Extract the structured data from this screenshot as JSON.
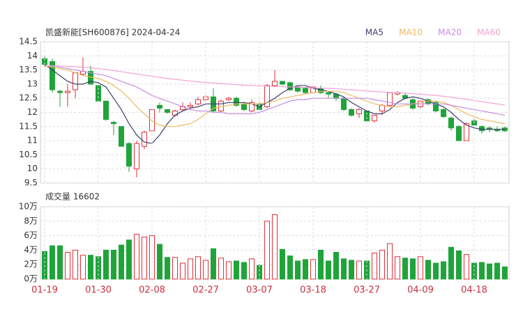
{
  "chart_data": [
    {
      "type": "candlestick",
      "title": "凯盛新能[SH600876] 2024-04-24",
      "open": [
        13.9,
        13.8,
        12.75,
        12.7,
        12.8,
        13.35,
        13.45,
        12.95,
        12.4,
        11.65,
        11.5,
        10.9,
        10.0,
        10.8,
        11.35,
        12.25,
        12.1,
        11.9,
        12.1,
        12.2,
        12.3,
        12.45,
        12.55,
        12.05,
        12.45,
        12.5,
        12.3,
        12.05,
        12.3,
        12.2,
        12.95,
        13.1,
        13.05,
        12.9,
        12.85,
        12.7,
        12.85,
        12.7,
        12.65,
        12.5,
        12.1,
        11.95,
        12.05,
        11.7,
        12.05,
        12.25,
        12.65,
        12.6,
        12.45,
        12.2,
        12.45,
        12.35,
        12.1,
        11.8,
        11.5,
        11.0,
        11.7,
        11.5,
        11.45,
        11.4,
        11.45
      ],
      "high": [
        14.0,
        13.9,
        12.8,
        13.0,
        13.4,
        13.95,
        13.65,
        13.0,
        12.4,
        11.7,
        11.5,
        10.95,
        11.0,
        11.35,
        12.1,
        12.35,
        12.1,
        12.1,
        12.35,
        12.35,
        12.55,
        12.6,
        12.85,
        12.45,
        12.55,
        12.55,
        12.35,
        12.45,
        12.35,
        13.0,
        13.5,
        13.1,
        13.1,
        12.95,
        12.9,
        12.9,
        12.95,
        12.75,
        12.7,
        12.55,
        12.15,
        12.15,
        12.1,
        11.9,
        12.3,
        12.7,
        12.75,
        12.7,
        12.5,
        12.45,
        12.5,
        12.4,
        12.15,
        11.85,
        11.55,
        11.65,
        11.8,
        11.55,
        11.5,
        11.5,
        11.5
      ],
      "low": [
        13.6,
        12.7,
        12.2,
        12.2,
        12.5,
        13.3,
        13.0,
        12.4,
        11.7,
        11.2,
        10.8,
        9.9,
        9.7,
        10.7,
        11.35,
        12.0,
        11.95,
        11.85,
        12.05,
        12.15,
        12.25,
        12.4,
        12.0,
        12.0,
        12.4,
        12.2,
        12.05,
        12.0,
        12.05,
        12.15,
        12.9,
        12.95,
        12.75,
        12.7,
        12.65,
        12.65,
        12.65,
        12.5,
        12.4,
        12.05,
        11.85,
        11.8,
        11.65,
        11.65,
        11.9,
        12.2,
        12.6,
        12.45,
        12.1,
        12.15,
        12.25,
        12.0,
        11.8,
        11.35,
        11.0,
        11.0,
        11.5,
        11.25,
        11.3,
        11.3,
        11.3
      ],
      "close": [
        13.7,
        12.8,
        12.7,
        12.75,
        13.4,
        13.45,
        13.0,
        12.4,
        11.75,
        11.6,
        10.8,
        10.1,
        10.9,
        11.3,
        12.1,
        12.15,
        12.0,
        12.05,
        12.2,
        12.25,
        12.45,
        12.55,
        12.05,
        12.4,
        12.5,
        12.25,
        12.1,
        12.35,
        12.1,
        12.95,
        13.1,
        13.0,
        12.8,
        12.75,
        12.7,
        12.9,
        12.7,
        12.65,
        12.5,
        12.1,
        11.9,
        12.1,
        11.7,
        11.9,
        12.25,
        12.7,
        12.7,
        12.5,
        12.15,
        12.4,
        12.3,
        12.05,
        11.85,
        11.45,
        11.0,
        11.6,
        11.55,
        11.35,
        11.4,
        11.35,
        11.35
      ],
      "up_color": "#e0303a",
      "down_color": "#1fa43a",
      "series": [
        {
          "name": "MA5",
          "color": "#3c3c6e",
          "values": [
            13.7,
            13.5,
            13.3,
            13.1,
            13.0,
            13.0,
            13.1,
            13.05,
            12.9,
            12.5,
            12.1,
            11.6,
            11.2,
            10.95,
            10.9,
            11.2,
            11.6,
            11.9,
            12.05,
            12.15,
            12.2,
            12.3,
            12.3,
            12.3,
            12.35,
            12.35,
            12.35,
            12.3,
            12.2,
            12.35,
            12.5,
            12.7,
            12.85,
            12.95,
            12.95,
            12.85,
            12.8,
            12.75,
            12.65,
            12.55,
            12.35,
            12.2,
            12.05,
            11.95,
            11.95,
            12.1,
            12.35,
            12.5,
            12.55,
            12.5,
            12.4,
            12.3,
            12.2,
            12.0,
            11.75,
            11.55,
            11.45,
            11.4,
            11.4,
            11.4,
            11.4
          ]
        },
        {
          "name": "MA10",
          "color": "#f0b860",
          "values": [
            13.65,
            13.6,
            13.55,
            13.5,
            13.4,
            13.3,
            13.25,
            13.2,
            13.1,
            12.95,
            12.75,
            12.5,
            12.2,
            11.95,
            11.7,
            11.55,
            11.5,
            11.5,
            11.55,
            11.6,
            11.75,
            11.95,
            12.15,
            12.2,
            12.25,
            12.3,
            12.3,
            12.3,
            12.3,
            12.35,
            12.4,
            12.5,
            12.55,
            12.6,
            12.65,
            12.7,
            12.75,
            12.75,
            12.75,
            12.7,
            12.6,
            12.5,
            12.4,
            12.3,
            12.25,
            12.2,
            12.2,
            12.25,
            12.3,
            12.35,
            12.4,
            12.4,
            12.35,
            12.25,
            12.1,
            11.95,
            11.85,
            11.75,
            11.7,
            11.65,
            11.6
          ]
        },
        {
          "name": "MA20",
          "color": "#c58fe0",
          "values": [
            13.65,
            13.65,
            13.6,
            13.55,
            13.5,
            13.45,
            13.4,
            13.35,
            13.3,
            13.2,
            13.1,
            13.0,
            12.9,
            12.75,
            12.6,
            12.5,
            12.4,
            12.3,
            12.2,
            12.1,
            12.05,
            12.05,
            12.0,
            12.0,
            11.95,
            11.95,
            11.95,
            11.95,
            12.0,
            12.1,
            12.2,
            12.3,
            12.4,
            12.45,
            12.45,
            12.5,
            12.5,
            12.5,
            12.5,
            12.5,
            12.5,
            12.5,
            12.5,
            12.45,
            12.4,
            12.35,
            12.3,
            12.3,
            12.3,
            12.3,
            12.3,
            12.3,
            12.3,
            12.25,
            12.2,
            12.15,
            12.1,
            12.05,
            12.0,
            11.95,
            11.9
          ]
        },
        {
          "name": "MA60",
          "color": "#f2a0d6",
          "values": [
            13.65,
            13.65,
            13.64,
            13.63,
            13.62,
            13.6,
            13.58,
            13.55,
            13.52,
            13.48,
            13.44,
            13.4,
            13.36,
            13.32,
            13.28,
            13.24,
            13.2,
            13.17,
            13.14,
            13.11,
            13.08,
            13.06,
            13.04,
            13.02,
            13.0,
            12.98,
            12.96,
            12.95,
            12.94,
            12.93,
            12.92,
            12.91,
            12.9,
            12.89,
            12.88,
            12.87,
            12.86,
            12.85,
            12.84,
            12.82,
            12.8,
            12.78,
            12.76,
            12.74,
            12.72,
            12.71,
            12.7,
            12.68,
            12.66,
            12.64,
            12.62,
            12.6,
            12.57,
            12.54,
            12.5,
            12.46,
            12.42,
            12.38,
            12.34,
            12.3,
            12.26
          ]
        }
      ],
      "ylim": [
        9.5,
        14.5
      ],
      "yticks": [
        9.5,
        10,
        10.5,
        11,
        11.5,
        12,
        12.5,
        13,
        13.5,
        14,
        14.5
      ],
      "grid": true
    },
    {
      "type": "bar",
      "title": "成交量 16602",
      "categories": [
        "01-19",
        null,
        null,
        null,
        null,
        null,
        null,
        "01-30",
        null,
        null,
        null,
        null,
        null,
        null,
        "02-08",
        null,
        null,
        null,
        null,
        null,
        null,
        "02-27",
        null,
        null,
        null,
        null,
        null,
        null,
        "03-07",
        null,
        null,
        null,
        null,
        null,
        null,
        "03-18",
        null,
        null,
        null,
        null,
        null,
        null,
        "03-27",
        null,
        null,
        null,
        null,
        null,
        null,
        "04-09",
        null,
        null,
        null,
        null,
        null,
        null,
        "04-18",
        null,
        null,
        null,
        null
      ],
      "values": [
        3.8,
        4.6,
        4.6,
        3.7,
        4.0,
        3.3,
        3.3,
        3.1,
        4.0,
        4.0,
        4.7,
        5.4,
        6.2,
        5.8,
        6.0,
        4.8,
        3.0,
        3.0,
        2.2,
        2.8,
        3.1,
        2.6,
        4.2,
        2.9,
        2.4,
        2.5,
        2.3,
        2.8,
        1.9,
        8.0,
        8.9,
        4.1,
        3.2,
        2.5,
        2.7,
        2.7,
        4.0,
        2.5,
        3.7,
        2.8,
        2.6,
        2.5,
        2.5,
        3.6,
        4.0,
        4.9,
        3.1,
        2.9,
        2.8,
        3.1,
        2.6,
        2.2,
        2.4,
        4.4,
        3.9,
        3.4,
        2.2,
        2.3,
        2.1,
        2.2,
        1.7
      ],
      "ylim": [
        0,
        10
      ],
      "yticks": [
        {
          "value": 0,
          "label": "0万"
        },
        {
          "value": 2,
          "label": "2万"
        },
        {
          "value": 4,
          "label": "4万"
        },
        {
          "value": 6,
          "label": "6万"
        },
        {
          "value": 8,
          "label": "8万"
        },
        {
          "value": 10,
          "label": "10万"
        }
      ],
      "grid": true
    }
  ]
}
